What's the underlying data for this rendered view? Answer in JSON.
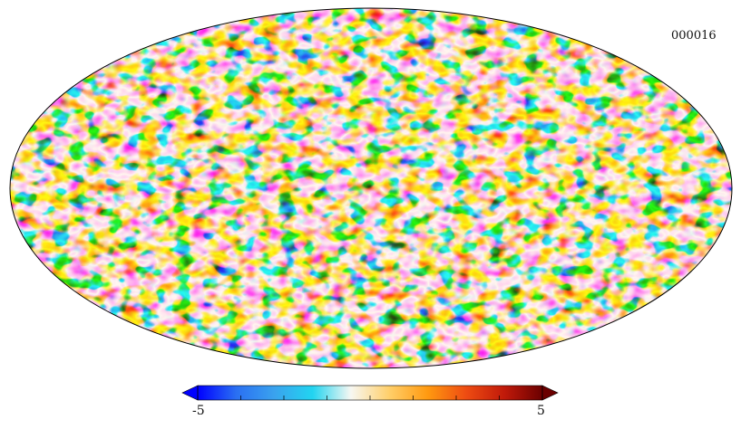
{
  "map": {
    "id_label": "000016",
    "projection": "mollweide"
  },
  "colorbar": {
    "min_label": "-5",
    "max_label": "5",
    "min_value": -5,
    "max_value": 5,
    "extend": "both",
    "colors": [
      "#0000ff",
      "#2a6ff2",
      "#3aa2ee",
      "#22d4f0",
      "#f7f7f2",
      "#ffcf6a",
      "#ff9a10",
      "#ee4c12",
      "#c11a0a",
      "#6b0000"
    ]
  }
}
